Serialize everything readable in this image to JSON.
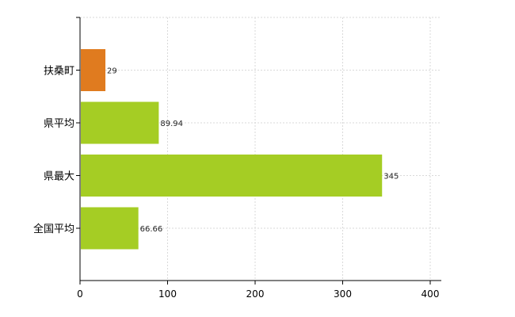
{
  "chart_data": {
    "type": "bar",
    "orientation": "horizontal",
    "title": "",
    "xlabel": "",
    "ylabel": "",
    "categories": [
      "扶桑町",
      "県平均",
      "県最大",
      "全国平均"
    ],
    "values": [
      29,
      89.94,
      345,
      66.66
    ],
    "value_labels": [
      "29",
      "89.94",
      "345",
      "66.66"
    ],
    "colors": [
      "#e07b1f",
      "#a5cd24",
      "#a5cd24",
      "#a5cd24"
    ],
    "xlim": [
      0,
      400
    ],
    "xticks": [
      0,
      100,
      200,
      300,
      400
    ],
    "grid": true,
    "legend": "none"
  }
}
